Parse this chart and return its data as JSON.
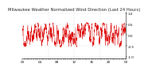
{
  "title": "Milwaukee Weather Normalized Wind Direction (Last 24 Hours)",
  "background_color": "#ffffff",
  "plot_bg_color": "#ffffff",
  "line_color": "#dd0000",
  "grid_color": "#bbbbbb",
  "title_fontsize": 3.8,
  "tick_fontsize": 3.0,
  "ylim": [
    -1.05,
    1.05
  ],
  "num_points": 1440,
  "seed": 42,
  "yticks": [
    1.0,
    0.5,
    0.0,
    -0.5,
    -1.0
  ],
  "num_vgrid": 3,
  "line_width": 0.25
}
